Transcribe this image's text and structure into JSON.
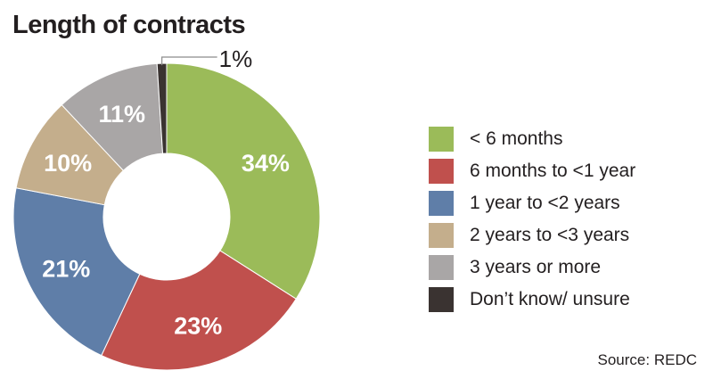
{
  "title": "Length of contracts",
  "source": "Source: REDC",
  "chart_data": {
    "type": "pie",
    "style": "donut",
    "title": "Length of contracts",
    "series": [
      {
        "label": "< 6 months",
        "value": 34,
        "value_label": "34%",
        "color": "#9bbb59"
      },
      {
        "label": "6 months to <1 year",
        "value": 23,
        "value_label": "23%",
        "color": "#c0504d"
      },
      {
        "label": "1 year to <2 years",
        "value": 21,
        "value_label": "21%",
        "color": "#5f7ea8"
      },
      {
        "label": "2 years to <3 years",
        "value": 10,
        "value_label": "10%",
        "color": "#c4ae8c"
      },
      {
        "label": "3 years or more",
        "value": 11,
        "value_label": "11%",
        "color": "#a9a6a6"
      },
      {
        "label": "Don’t know/ unsure",
        "value": 1,
        "value_label": "1%",
        "color": "#3a3331"
      }
    ],
    "legend_position": "right"
  }
}
